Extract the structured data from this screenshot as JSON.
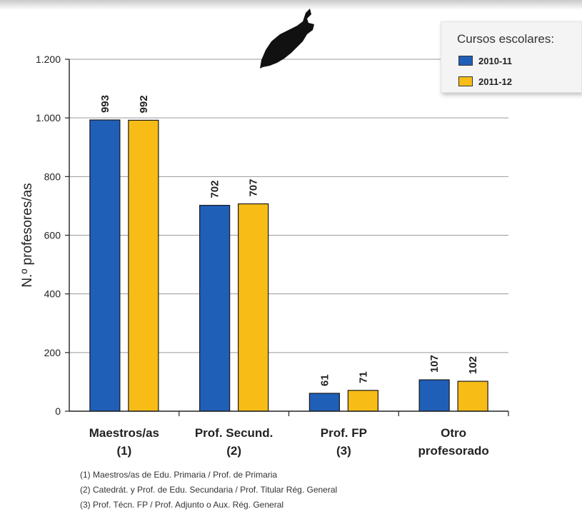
{
  "chart_data": {
    "type": "bar",
    "categories": [
      [
        "Maestros/as",
        "(1)"
      ],
      [
        "Prof.  Secund.",
        "(2)"
      ],
      [
        "Prof. FP",
        "(3)"
      ],
      [
        "Otro",
        "profesorado"
      ]
    ],
    "series": [
      {
        "name": "2010-11",
        "values": [
          993,
          702,
          61,
          107
        ],
        "color": "#1f5fb8"
      },
      {
        "name": "2011-12",
        "values": [
          992,
          707,
          71,
          102
        ],
        "color": "#f7bd16"
      }
    ],
    "ylabel": "N.º profesores/as",
    "ylim": [
      0,
      1200
    ],
    "yticks": [
      0,
      200,
      400,
      600,
      800,
      1000,
      1200
    ],
    "ytick_labels": [
      "0",
      "200",
      "400",
      "600",
      "800",
      "1.000",
      "1.200"
    ],
    "grid": true,
    "legend": {
      "title": "Cursos escolares:",
      "position": "top-right"
    },
    "footnotes": [
      "(1) Maestros/as de Edu. Primaria / Prof. de Primaria",
      "(2) Catedrát. y Prof. de Edu. Secundaria / Prof. Titular Rég. General",
      "(3) Prof. Técn. FP / Prof. Adjunto o Aux. Rég. General"
    ]
  },
  "island_icon": "island-silhouette-icon"
}
